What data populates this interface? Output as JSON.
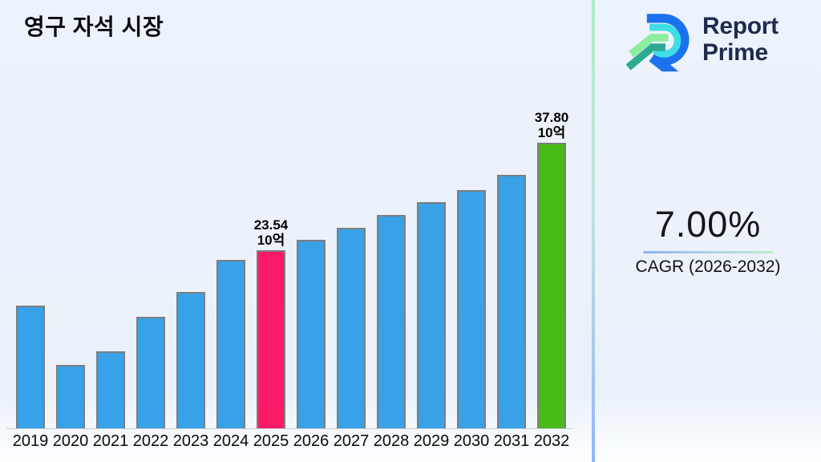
{
  "page": {
    "background": "#ECF2FB"
  },
  "header": {
    "title": "영구 자석 시장"
  },
  "logo": {
    "line1": "Report",
    "line2": "Prime",
    "text_color": "#1F2A4E",
    "icon_colors": {
      "blue": "#1C72EE",
      "cyan": "#3FDDE6",
      "light_green": "#8DEC9E",
      "teal": "#2EA992"
    }
  },
  "cagr": {
    "value": "7.00%",
    "label": "CAGR (2026-2032)"
  },
  "divider_colors": [
    "#ABEFC6",
    "#92B7F7"
  ],
  "chart_data": {
    "type": "bar",
    "title": "영구 자석 시장",
    "unit": "10억",
    "categories": [
      "2019",
      "2020",
      "2021",
      "2022",
      "2023",
      "2024",
      "2025",
      "2026",
      "2027",
      "2028",
      "2029",
      "2030",
      "2031",
      "2032"
    ],
    "values": [
      16.3,
      8.4,
      10.2,
      14.8,
      18.0,
      22.3,
      23.54,
      25.0,
      26.5,
      28.2,
      29.9,
      31.5,
      33.6,
      37.8
    ],
    "annotations": [
      {
        "category": "2025",
        "lines": [
          "23.54",
          "10억"
        ]
      },
      {
        "category": "2032",
        "lines": [
          "37.80",
          "10억"
        ]
      }
    ],
    "colors": {
      "default": "#38A1E8",
      "border": "#7E7E7E"
    },
    "colors_by_category": {
      "2025": "#FB1A67",
      "2032": "#49BB16"
    },
    "xlabel": "",
    "ylabel": "",
    "ylim": [
      0,
      40
    ],
    "gridlines": false,
    "legend": false
  }
}
